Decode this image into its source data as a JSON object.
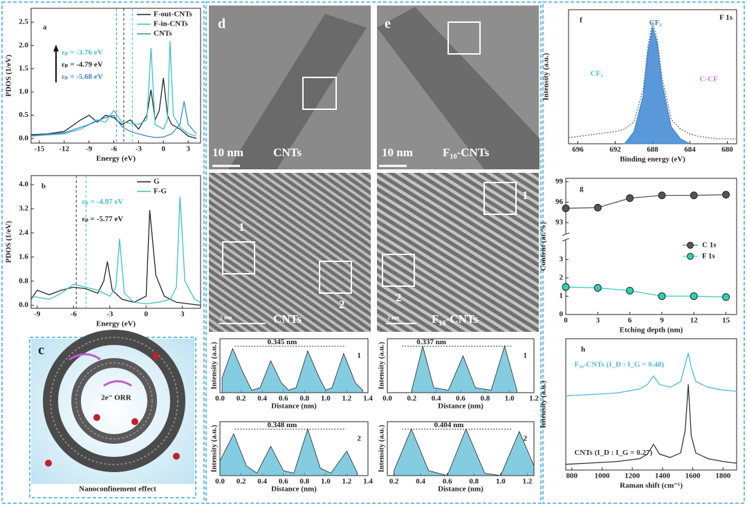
{
  "chart_data": [
    {
      "type": "line",
      "panel": "a",
      "xlabel": "Energy (eV)",
      "ylabel": "PDOS (1/eV)",
      "xlim": [
        -16,
        4.5
      ],
      "xticks": [
        -15,
        -12,
        -9,
        -6,
        -3,
        0,
        3
      ],
      "ylim": [
        -0.1,
        2.8
      ],
      "yticks": [
        {
          "value": 0,
          "label": "0.0"
        },
        0.5,
        {
          "value": 1,
          "label": "1.0"
        },
        1.5,
        {
          "value": 2,
          "label": "2.0"
        },
        2.5
      ],
      "legend": "upper right",
      "series": [
        {
          "name": "F-out-CNTs",
          "color": "#222222",
          "x": [
            -16,
            -14,
            -12,
            -10,
            -9,
            -8,
            -7,
            -6,
            -5,
            -4,
            -3,
            -2,
            -1.5,
            -1,
            -0.5,
            0,
            0.5,
            1,
            2,
            3,
            4
          ],
          "values": [
            0.08,
            0.1,
            0.15,
            0.4,
            0.5,
            0.35,
            0.5,
            0.45,
            0.3,
            0.4,
            0.2,
            0.5,
            1.05,
            0.4,
            0.6,
            1.3,
            0.5,
            0.3,
            0.2,
            0.05,
            0
          ]
        },
        {
          "name": "F-in-CNTs",
          "color": "#3bbfc6",
          "x": [
            -16,
            -12,
            -10,
            -8,
            -7,
            -6,
            -5,
            -3,
            -2,
            -1.5,
            -1,
            0,
            0.5,
            0.8,
            1.2,
            2,
            3,
            4
          ],
          "values": [
            0.05,
            0.1,
            0.2,
            0.4,
            0.35,
            0.6,
            0.35,
            0.3,
            0.4,
            1.95,
            0.3,
            0.2,
            0.4,
            2.1,
            0.5,
            0.25,
            0.1,
            0.05
          ]
        },
        {
          "name": "CNTs",
          "color": "#3a86c8",
          "x": [
            -16,
            -12,
            -9,
            -7,
            -6,
            -5,
            -4,
            -3,
            -2,
            -1,
            0,
            1,
            2,
            2.5,
            3,
            4
          ],
          "values": [
            0.06,
            0.12,
            0.3,
            0.45,
            0.5,
            0.25,
            0.15,
            0.1,
            0.05,
            0.02,
            0.03,
            0.1,
            0.3,
            0.8,
            0.3,
            0.1
          ]
        }
      ],
      "vlines": [
        {
          "x": -3.76,
          "color": "#3bbfc6"
        },
        {
          "x": -4.79,
          "color": "#333333"
        },
        {
          "x": -5.68,
          "color": "#3a86c8"
        }
      ],
      "annotations": [
        {
          "text": "εₚ = -3.76 eV",
          "color": "#3bbfc6"
        },
        {
          "text": "εₚ = -4.79 eV",
          "color": "#222222"
        },
        {
          "text": "εₚ = -5.68 eV",
          "color": "#3a86c8"
        }
      ]
    },
    {
      "type": "line",
      "panel": "b",
      "xlabel": "Energy (eV)",
      "ylabel": "PDOS (1/eV)",
      "xlim": [
        -9.5,
        4.5
      ],
      "xticks": [
        -9,
        -6,
        -3,
        0,
        3
      ],
      "ylim": [
        -0.1,
        4.3
      ],
      "yticks": [
        {
          "value": 0,
          "label": "0.0"
        },
        0.8,
        1.6,
        2.4,
        3.2,
        {
          "value": 4,
          "label": "4.0"
        }
      ],
      "legend": "upper right",
      "series": [
        {
          "name": "G",
          "color": "#222222",
          "x": [
            -9.5,
            -9,
            -8,
            -7,
            -6,
            -5,
            -4,
            -3.5,
            -3.2,
            -2.8,
            -2,
            -1,
            0,
            0.3,
            0.8,
            1.5,
            2.5,
            3.5,
            4.5
          ],
          "values": [
            0.2,
            0.5,
            0.35,
            0.5,
            0.6,
            0.55,
            0.4,
            0.8,
            1.45,
            0.5,
            0.2,
            0.1,
            0.3,
            3.15,
            1.0,
            0.3,
            0.1,
            0.05,
            0
          ]
        },
        {
          "name": "F-G",
          "color": "#3bbfc6",
          "x": [
            -9.5,
            -8,
            -7,
            -6,
            -5,
            -4,
            -3,
            -2.5,
            -2.2,
            -1.8,
            -1,
            0,
            1,
            2,
            2.5,
            2.8,
            3.2,
            4,
            4.5
          ],
          "values": [
            0.3,
            0.2,
            0.4,
            0.7,
            0.6,
            0.5,
            0.3,
            0.6,
            2.2,
            0.4,
            0.1,
            0.05,
            0.1,
            0.2,
            0.6,
            3.6,
            0.8,
            0.2,
            0.1
          ]
        }
      ],
      "vlines": [
        {
          "x": -5.77,
          "color": "#333333"
        },
        {
          "x": -4.97,
          "color": "#3bbfc6"
        }
      ],
      "annotations": [
        {
          "text": "εₚ = -4.97 eV",
          "color": "#3bbfc6"
        },
        {
          "text": "εₚ = -5.77 eV",
          "color": "#222222"
        }
      ]
    },
    {
      "type": "area",
      "xlabel": "Distance (nm)",
      "ylabel": "Intensity (a.u.)",
      "color": "#5bbcd6",
      "xlim": [
        0,
        1.4
      ],
      "xticks": [
        {
          "value": 0,
          "label": "0.0"
        },
        0.2,
        0.4,
        0.6,
        0.8,
        {
          "value": 1,
          "label": "1.0"
        },
        1.2,
        1.4
      ],
      "ylim": [
        0,
        1.1
      ],
      "series": [
        {
          "x": [
            0.02,
            0.12,
            0.22,
            0.3,
            0.38,
            0.48,
            0.58,
            0.65,
            0.72,
            0.83,
            0.94,
            1.0,
            1.06,
            1.17,
            1.28,
            1.35
          ],
          "values": [
            0.3,
            0.9,
            0.4,
            0.05,
            0.1,
            0.65,
            0.2,
            0.05,
            0.1,
            0.85,
            0.3,
            0.05,
            0.1,
            0.8,
            0.2,
            0.05
          ]
        }
      ],
      "annotations": [
        {
          "text": "0.345 nm"
        },
        {
          "text": "1"
        }
      ]
    },
    {
      "type": "area",
      "xlabel": "Distance (nm)",
      "ylabel": "Intensity (a.u.)",
      "color": "#5bbcd6",
      "xlim": [
        0,
        1.4
      ],
      "xticks": [
        {
          "value": 0,
          "label": "0.0"
        },
        0.2,
        0.4,
        0.6,
        0.8,
        {
          "value": 1,
          "label": "1.0"
        },
        1.2,
        1.4
      ],
      "ylim": [
        0,
        1.1
      ],
      "series": [
        {
          "x": [
            0.0,
            0.13,
            0.25,
            0.35,
            0.48,
            0.6,
            0.7,
            0.83,
            0.95,
            1.05,
            1.2,
            1.3
          ],
          "values": [
            0.3,
            0.85,
            0.2,
            0.05,
            0.6,
            0.1,
            0.05,
            0.95,
            0.15,
            0.05,
            0.5,
            0.05
          ]
        }
      ],
      "annotations": [
        {
          "text": "0.348 nm"
        },
        {
          "text": "2"
        }
      ]
    },
    {
      "type": "area",
      "xlabel": "Distance (nm)",
      "ylabel": "Intensity (a.u.)",
      "color": "#5bbcd6",
      "xlim": [
        0,
        1.2
      ],
      "xticks": [
        {
          "value": 0,
          "label": "0.0"
        },
        0.2,
        0.4,
        0.6,
        0.8,
        {
          "value": 1,
          "label": "1.0"
        },
        1.2
      ],
      "ylim": [
        0,
        1.1
      ],
      "series": [
        {
          "x": [
            0.2,
            0.29,
            0.38,
            0.5,
            0.62,
            0.72,
            0.85,
            0.96,
            1.06
          ],
          "values": [
            0.05,
            0.95,
            0.1,
            0.05,
            0.75,
            0.1,
            0.05,
            0.95,
            0.05
          ]
        }
      ],
      "annotations": [
        {
          "text": "0.337 nm"
        },
        {
          "text": "1"
        }
      ]
    },
    {
      "type": "area",
      "xlabel": "Distance (nm)",
      "ylabel": "Intensity (a.u.)",
      "color": "#5bbcd6",
      "xlim": [
        0.15,
        1.25
      ],
      "xticks": [
        0.2,
        0.4,
        0.6,
        0.8,
        {
          "value": 1,
          "label": "1.0"
        },
        1.2
      ],
      "ylim": [
        0,
        1.1
      ],
      "series": [
        {
          "x": [
            0.2,
            0.33,
            0.46,
            0.6,
            0.74,
            0.88,
            1.0,
            1.14,
            1.25
          ],
          "values": [
            0.1,
            0.95,
            0.1,
            0.0,
            0.95,
            0.05,
            0.0,
            0.9,
            0.2
          ]
        }
      ],
      "annotations": [
        {
          "text": "0.404 nm"
        },
        {
          "text": "2"
        }
      ]
    },
    {
      "type": "xps",
      "panel": "f",
      "title": "F 1s",
      "xlabel": "Binding energy (eV)",
      "ylabel": "Intensity (a.u.)",
      "xlim": [
        697,
        679
      ],
      "xticks": [
        696,
        692,
        688,
        684,
        680
      ],
      "ylim": [
        0,
        1.1
      ],
      "series": [
        {
          "color": "#777777",
          "x": [
            697,
            696,
            695,
            694,
            693,
            692,
            691,
            690,
            689,
            688.5,
            688,
            687.5,
            687,
            686,
            685,
            684,
            683,
            682,
            681,
            680,
            679
          ],
          "values": [
            0.05,
            0.06,
            0.07,
            0.08,
            0.09,
            0.1,
            0.12,
            0.18,
            0.45,
            0.8,
            1.0,
            0.85,
            0.55,
            0.2,
            0.12,
            0.08,
            0.06,
            0.05,
            0.04,
            0.04,
            0.04
          ]
        },
        {
          "color": "#2f7fd0",
          "x": [
            691,
            690,
            689,
            688.5,
            688,
            687.5,
            687,
            686,
            685,
            684
          ],
          "values": [
            0.0,
            0.1,
            0.4,
            0.76,
            0.96,
            0.82,
            0.5,
            0.14,
            0.04,
            0.0
          ]
        }
      ],
      "annotations": [
        {
          "text": "CF₂",
          "color": "#2f7fd0"
        },
        {
          "text": "CF₃",
          "color": "#3bbfc6"
        },
        {
          "text": "C-CF",
          "color": "#c77dd6"
        }
      ]
    },
    {
      "type": "line",
      "panel": "g",
      "markers": true,
      "xlabel": "Etching depth (nm)",
      "ylabel": "Content (at.%)",
      "xlim": [
        0,
        16
      ],
      "xticks": [
        0,
        3,
        6,
        9,
        12,
        15
      ],
      "ylim": [
        0,
        4
      ],
      "yticks": [
        0,
        1,
        2,
        3
      ],
      "y2lim": [
        91.5,
        99.5
      ],
      "y2ticks": [
        93,
        96,
        99
      ],
      "legend": "right",
      "series": [
        {
          "name": "C 1s",
          "color": "#555555",
          "axis": "y2",
          "x": [
            0,
            3,
            6,
            9,
            12,
            15
          ],
          "values": [
            95.1,
            95.2,
            96.6,
            97.0,
            97.0,
            97.1
          ]
        },
        {
          "name": "F 1s",
          "color": "#2fcfb6",
          "x": [
            0,
            3,
            6,
            9,
            12,
            15
          ],
          "values": [
            1.5,
            1.45,
            1.3,
            1.0,
            1.0,
            0.95
          ]
        }
      ]
    },
    {
      "type": "line",
      "panel": "h",
      "xlabel": "Raman shift (cm⁻¹)",
      "ylabel": "Intensity (a.u.)",
      "xlim": [
        760,
        1890
      ],
      "xticks": [
        800,
        1000,
        1200,
        1400,
        1600,
        1800
      ],
      "ylim": [
        0,
        2.3
      ],
      "legend": "inline",
      "series": [
        {
          "name": "F₁₀-CNTs (I_D : I_G = 0.48)",
          "color": "#4fb8dc",
          "x": [
            760,
            900,
            1100,
            1250,
            1300,
            1340,
            1380,
            1450,
            1520,
            1550,
            1570,
            1590,
            1620,
            1700,
            1800,
            1890
          ],
          "values": [
            1.3,
            1.32,
            1.35,
            1.42,
            1.5,
            1.65,
            1.5,
            1.45,
            1.55,
            1.85,
            2.05,
            1.8,
            1.55,
            1.45,
            1.4,
            1.38
          ]
        },
        {
          "name": "CNTs (I_D : I_G = 0.27)",
          "color": "#333333",
          "x": [
            760,
            900,
            1100,
            1250,
            1300,
            1340,
            1380,
            1450,
            1520,
            1550,
            1570,
            1590,
            1620,
            1700,
            1800,
            1890
          ],
          "values": [
            0.1,
            0.12,
            0.15,
            0.2,
            0.28,
            0.45,
            0.28,
            0.22,
            0.3,
            0.7,
            1.5,
            0.6,
            0.3,
            0.2,
            0.15,
            0.12
          ]
        }
      ]
    }
  ],
  "images": {
    "c": {
      "panel": "c",
      "reaction": "2e⁻ ORR",
      "caption": "Nanoconfinement effect"
    },
    "d": {
      "panel": "d",
      "scale": "10 nm",
      "name": "CNTs",
      "region1": "1",
      "region2": "2",
      "hr_scale": "2 nm",
      "hr_name": "CNTs"
    },
    "e": {
      "panel": "e",
      "scale": "10 nm",
      "name": "F₁₀-CNTs",
      "region1": "1",
      "region2": "2",
      "hr_scale": "2 nm",
      "hr_name": "F₁₀-CNTs"
    }
  }
}
